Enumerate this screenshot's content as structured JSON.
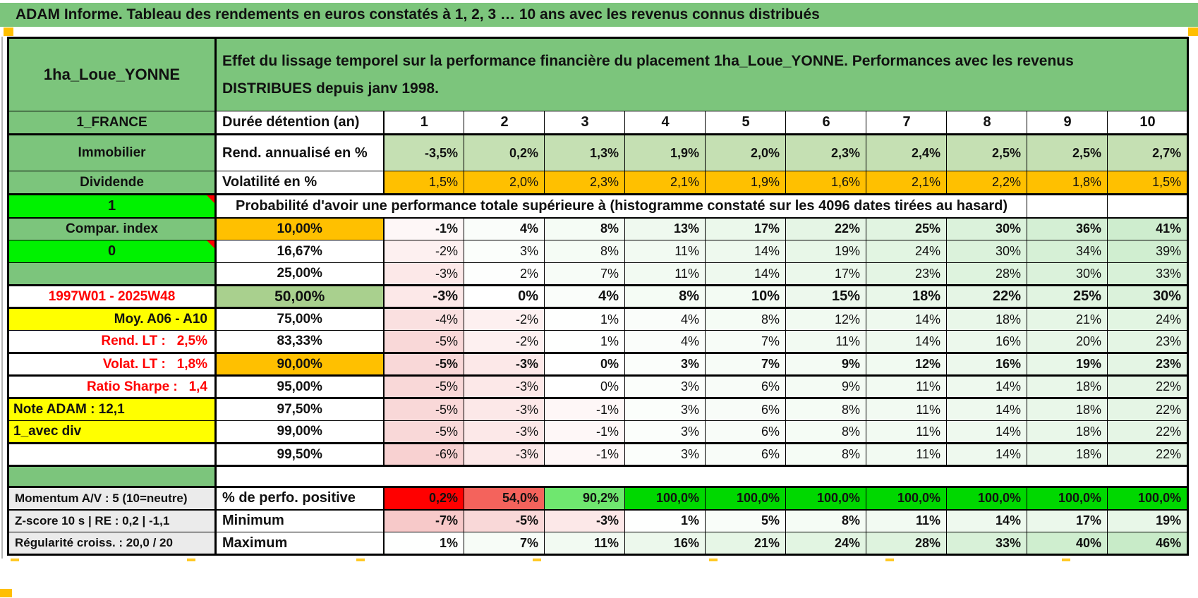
{
  "page_title": "ADAM Informe. Tableau des rendements en euros constatés à 1, 2, 3 … 10 ans avec les revenus connus distribués",
  "header": {
    "asset_name": "1ha_Loue_YONNE",
    "description": "Effet du lissage temporel sur la performance financière du placement 1ha_Loue_YONNE. Performances avec les revenus DISTRIBUES depuis janv 1998."
  },
  "palette": {
    "green": "#7cc57c",
    "green_light": "#a9d08e",
    "bright_green": "#00f200",
    "yellow": "#ffff00",
    "orange": "#ffc000",
    "flat_green": "#c5e0b3",
    "gray_label": "#ebebeb",
    "red": "#ff0000",
    "orange_marker": "#ffbf00"
  },
  "table": {
    "columns": [
      "1",
      "2",
      "3",
      "4",
      "5",
      "6",
      "7",
      "8",
      "9",
      "10"
    ],
    "scale": {
      "neg_max": 7,
      "pos_max": 46,
      "neg_color": "#f7c9c9",
      "pos_color": "#c8ebc8"
    },
    "rows": [
      {
        "key": "duree",
        "label": "1_FRANCE",
        "label_style": "green",
        "header": "Durée détention (an)",
        "header_style": "plain-left",
        "values": [
          "1",
          "2",
          "3",
          "4",
          "5",
          "6",
          "7",
          "8",
          "9",
          "10"
        ],
        "value_style": "colhead",
        "value_align": "center",
        "bold": true,
        "bottom_border": "thick"
      },
      {
        "key": "rend",
        "label": "Immobilier",
        "label_style": "green",
        "header": "Rend. annualisé en %",
        "header_style": "plain-left",
        "values": [
          "-3,5%",
          "0,2%",
          "1,3%",
          "1,9%",
          "2,0%",
          "2,3%",
          "2,4%",
          "2,5%",
          "2,5%",
          "2,7%"
        ],
        "value_style": "flat-green",
        "bold": true
      },
      {
        "key": "volat",
        "label": "Dividende",
        "label_style": "green",
        "header": "Volatilité en %",
        "header_style": "plain-left",
        "values": [
          "1,5%",
          "2,0%",
          "2,3%",
          "2,1%",
          "1,9%",
          "1,6%",
          "2,1%",
          "2,2%",
          "1,8%",
          "1,5%"
        ],
        "value_style": "flat-orange",
        "bold": false,
        "bottom_border": "thick"
      },
      {
        "key": "proba",
        "type": "span",
        "label": "1",
        "label_style": "bright",
        "label_marker": true,
        "span_text": "Probabilité d'avoir une performance totale supérieure à (histogramme constaté sur les 4096 dates tirées au hasard)",
        "bottom_border": "medium"
      },
      {
        "key": "p10",
        "label": "Compar. index",
        "label_style": "green",
        "header": "10,00%",
        "header_style": "orange",
        "values": [
          "-1%",
          "4%",
          "8%",
          "13%",
          "17%",
          "22%",
          "25%",
          "30%",
          "36%",
          "41%"
        ],
        "value_style": "scale",
        "bold": true
      },
      {
        "key": "p1667",
        "label": "0",
        "label_style": "bright",
        "label_marker": true,
        "header": "16,67%",
        "header_style": "plain",
        "values": [
          "-2%",
          "3%",
          "8%",
          "11%",
          "14%",
          "19%",
          "24%",
          "30%",
          "34%",
          "39%"
        ],
        "value_style": "scale",
        "bold": false
      },
      {
        "key": "p25",
        "label": "",
        "label_style": "green",
        "header": "25,00%",
        "header_style": "plain",
        "values": [
          "-3%",
          "2%",
          "7%",
          "11%",
          "14%",
          "17%",
          "23%",
          "28%",
          "30%",
          "33%"
        ],
        "value_style": "scale",
        "bold": false
      },
      {
        "key": "p50",
        "label": "1997W01 - 2025W48",
        "label_style": "white-red",
        "header": "50,00%",
        "header_style": "green-light",
        "values": [
          "-3%",
          "0%",
          "4%",
          "8%",
          "10%",
          "15%",
          "18%",
          "22%",
          "25%",
          "30%"
        ],
        "value_style": "scale",
        "bold": true,
        "big": true,
        "top_border": "thick",
        "bottom_border": "thick"
      },
      {
        "key": "p75",
        "label": "Moy. A06 - A10",
        "label_style": "yellow-right",
        "header": "75,00%",
        "header_style": "plain",
        "values": [
          "-4%",
          "-2%",
          "1%",
          "4%",
          "8%",
          "12%",
          "14%",
          "18%",
          "21%",
          "24%"
        ],
        "value_style": "scale",
        "bold": false
      },
      {
        "key": "p8333",
        "label": "Rend. LT :   2,5%",
        "label_style": "white-red-right",
        "header": "83,33%",
        "header_style": "plain",
        "values": [
          "-5%",
          "-2%",
          "1%",
          "4%",
          "7%",
          "11%",
          "14%",
          "16%",
          "20%",
          "23%"
        ],
        "value_style": "scale",
        "bold": false
      },
      {
        "key": "p90",
        "label": "Volat. LT :   1,8%",
        "label_style": "white-red-right",
        "header": "90,00%",
        "header_style": "orange",
        "values": [
          "-5%",
          "-3%",
          "0%",
          "3%",
          "7%",
          "9%",
          "12%",
          "16%",
          "19%",
          "23%"
        ],
        "value_style": "scale",
        "bold": true,
        "top_border": "thick",
        "bottom_border": "thick"
      },
      {
        "key": "p95",
        "label": "Ratio Sharpe :   1,4",
        "label_style": "white-red-right",
        "header": "95,00%",
        "header_style": "plain",
        "values": [
          "-5%",
          "-3%",
          "0%",
          "3%",
          "6%",
          "9%",
          "11%",
          "14%",
          "18%",
          "22%"
        ],
        "value_style": "scale",
        "bold": false,
        "bottom_border": "thick"
      },
      {
        "key": "p975",
        "label": "Note ADAM : 12,1",
        "label_style": "yellow-left",
        "header": "97,50%",
        "header_style": "plain",
        "values": [
          "-5%",
          "-3%",
          "-1%",
          "3%",
          "6%",
          "8%",
          "11%",
          "14%",
          "18%",
          "22%"
        ],
        "value_style": "scale",
        "bold": false
      },
      {
        "key": "p99",
        "label": "1_avec div",
        "label_style": "yellow-left",
        "header": "99,00%",
        "header_style": "plain",
        "values": [
          "-5%",
          "-3%",
          "-1%",
          "3%",
          "6%",
          "8%",
          "11%",
          "14%",
          "18%",
          "22%"
        ],
        "value_style": "scale",
        "bold": false,
        "bottom_border": "thick"
      },
      {
        "key": "p995",
        "label": "",
        "label_style": "white",
        "header": "99,50%",
        "header_style": "plain",
        "values": [
          "-6%",
          "-3%",
          "-1%",
          "3%",
          "6%",
          "8%",
          "11%",
          "14%",
          "18%",
          "22%"
        ],
        "value_style": "scale",
        "bold": false,
        "bottom_border": "thick"
      },
      {
        "key": "gap",
        "type": "gap",
        "label": "",
        "label_style": "green"
      },
      {
        "key": "perfpos",
        "label": "Momentum A/V : 5 (10=neutre)",
        "label_style": "gray",
        "header": "% de perfo. positive",
        "header_style": "plain-left",
        "values": [
          "0,2%",
          "54,0%",
          "90,2%",
          "100,0%",
          "100,0%",
          "100,0%",
          "100,0%",
          "100,0%",
          "100,0%",
          "100,0%"
        ],
        "value_style": "custom",
        "colors": [
          "#ff0000",
          "#f4635c",
          "#6fe76f",
          "#00d800",
          "#00d800",
          "#00d800",
          "#00d800",
          "#00d800",
          "#00d800",
          "#00d800"
        ],
        "bold": true,
        "top_border": "thick",
        "bottom_border": "medium"
      },
      {
        "key": "min",
        "label": "Z-score 10 s | RE : 0,2 | -1,1",
        "label_style": "gray",
        "header": "Minimum",
        "header_style": "plain-left",
        "values": [
          "-7%",
          "-5%",
          "-3%",
          "1%",
          "5%",
          "8%",
          "11%",
          "14%",
          "17%",
          "19%"
        ],
        "value_style": "scale",
        "bold": true
      },
      {
        "key": "max",
        "label": "Régularité croiss. : 20,0 / 20",
        "label_style": "gray",
        "header": "Maximum",
        "header_style": "plain-left",
        "values": [
          "1%",
          "7%",
          "11%",
          "16%",
          "21%",
          "24%",
          "28%",
          "33%",
          "40%",
          "46%"
        ],
        "value_style": "scale",
        "bold": true,
        "bottom_border": "thick"
      }
    ]
  }
}
